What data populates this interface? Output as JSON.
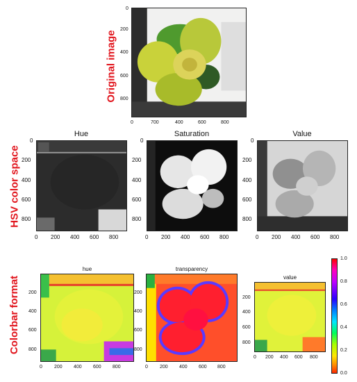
{
  "sections": {
    "original": "Original image",
    "hsv": "HSV color space",
    "colorbar": "Colorbar format"
  },
  "panels": {
    "hsv_hue": "Hue",
    "hsv_saturation": "Saturation",
    "hsv_value": "Value",
    "cb_hue": "hue",
    "cb_transparency": "transparency",
    "cb_value": "value"
  },
  "ticks": {
    "orig_y": [
      "0",
      "200",
      "400",
      "600",
      "800"
    ],
    "orig_x": [
      "0",
      "700",
      "400",
      "600",
      "800"
    ],
    "hsv_y": [
      "0",
      "200",
      "400",
      "600",
      "800"
    ],
    "hsv_x": [
      "0",
      "200",
      "400",
      "600",
      "800"
    ],
    "cb_y": [
      "200",
      "400",
      "600",
      "800"
    ],
    "cb_x": [
      "0",
      "200",
      "400",
      "600",
      "800"
    ],
    "cbar": [
      "1.0",
      "0.8",
      "0.6",
      "0.4",
      "0.2",
      "0.0"
    ]
  },
  "colors": {
    "section_label": "#e1141c"
  }
}
